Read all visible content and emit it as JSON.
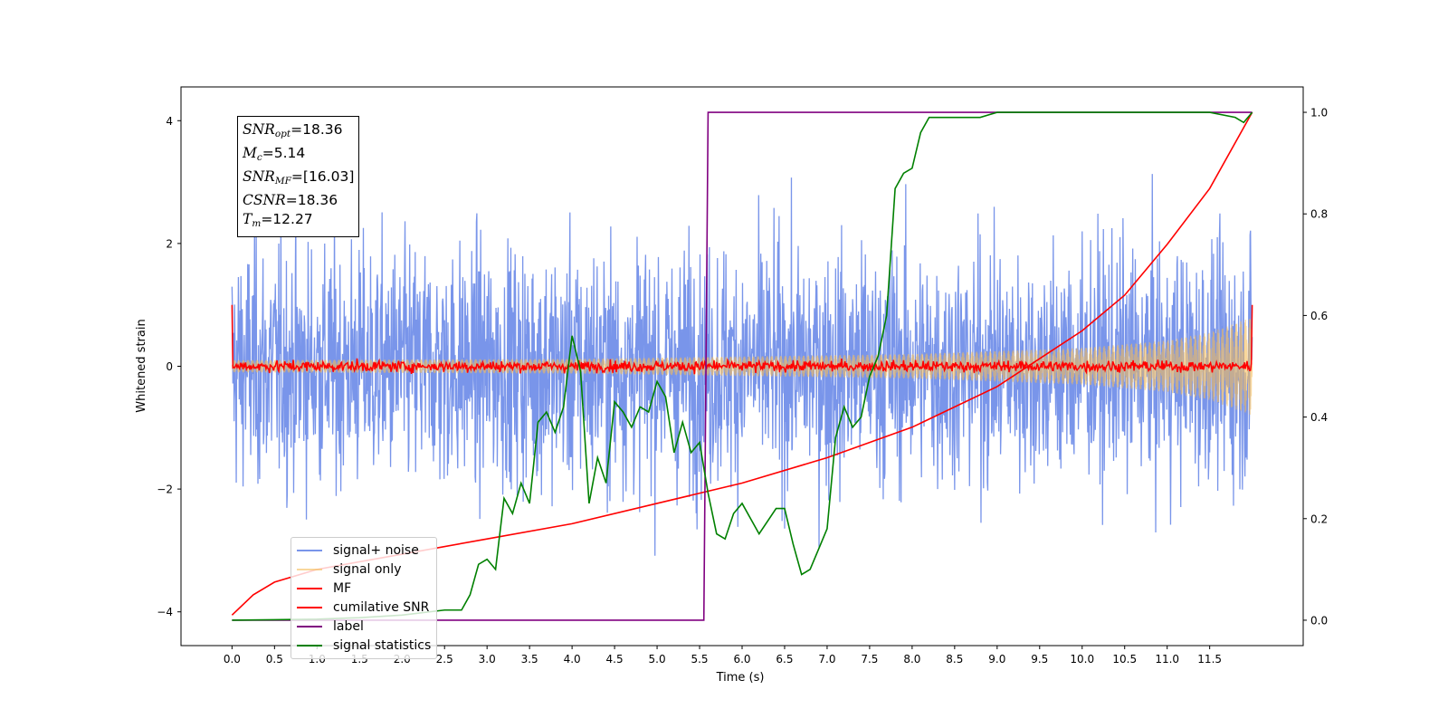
{
  "chart_data": {
    "type": "line",
    "xlabel": "Time (s)",
    "ylabel": "Whitened strain",
    "xlim": [
      -0.6,
      12.6
    ],
    "ylim": [
      -4.55,
      4.55
    ],
    "y2lim": [
      -0.05,
      1.05
    ],
    "x_ticks": [
      0.0,
      0.5,
      1.0,
      1.5,
      2.0,
      2.5,
      3.0,
      3.5,
      4.0,
      4.5,
      5.0,
      5.5,
      6.0,
      6.5,
      7.0,
      7.5,
      8.0,
      8.5,
      9.0,
      9.5,
      10.0,
      10.5,
      11.0,
      11.5
    ],
    "x_tick_labels": [
      "0.0",
      "0.5",
      "1.0",
      "1.5",
      "2.0",
      "2.5",
      "3.0",
      "3.5",
      "4.0",
      "4.5",
      "5.0",
      "5.5",
      "6.0",
      "6.5",
      "7.0",
      "7.5",
      "8.0",
      "8.5",
      "9.0",
      "9.5",
      "10.0",
      "10.5",
      "11.0",
      "11.5"
    ],
    "y_ticks": [
      -4,
      -2,
      0,
      2,
      4
    ],
    "y_tick_labels": [
      "−4",
      "−2",
      "0",
      "2",
      "4"
    ],
    "y2_ticks": [
      0.0,
      0.2,
      0.4,
      0.6,
      0.8,
      1.0
    ],
    "y2_tick_labels": [
      "0.0",
      "0.2",
      "0.4",
      "0.6",
      "0.8",
      "1.0"
    ],
    "grid": false,
    "legend_position": "lower-left",
    "annotations": {
      "snr_opt": {
        "name": "SNR",
        "sub": "opt",
        "value": "=18.36"
      },
      "mc": {
        "name": "M",
        "sub": "c",
        "value": "=5.14"
      },
      "snr_mf": {
        "name": "SNR",
        "sub": "MF",
        "value": "=[16.03]"
      },
      "csnr": {
        "name": "CSNR",
        "sub": "",
        "value": "=18.36"
      },
      "tm": {
        "name": "T",
        "sub": "m",
        "value": "=12.27"
      }
    },
    "series": [
      {
        "name": "signal+ noise",
        "color": "#6283e6",
        "axis": "left",
        "kind": "noise",
        "amplitude_approx": 2.2,
        "x_range": [
          0.0,
          12.0
        ]
      },
      {
        "name": "signal only",
        "color": "#f5bd59",
        "axis": "left",
        "kind": "chirp",
        "envelope": {
          "x": [
            0.0,
            4.0,
            8.0,
            10.0,
            11.0,
            11.5,
            12.0
          ],
          "y": [
            0.1,
            0.12,
            0.2,
            0.3,
            0.42,
            0.55,
            0.8
          ]
        }
      },
      {
        "name": "MF",
        "color": "#ff0000",
        "axis": "left",
        "kind": "noisy-flat",
        "approx": {
          "x": [
            0.0,
            0.02,
            12.0
          ],
          "y": [
            1.0,
            0.0,
            0.0
          ]
        }
      },
      {
        "name": "cumilative SNR",
        "color": "#ff0000",
        "axis": "right",
        "x": [
          0.0,
          0.25,
          0.5,
          1.0,
          2.0,
          3.0,
          4.0,
          5.0,
          6.0,
          7.0,
          8.0,
          9.0,
          10.0,
          10.5,
          11.0,
          11.5,
          12.0
        ],
        "y": [
          0.01,
          0.05,
          0.075,
          0.1,
          0.13,
          0.16,
          0.19,
          0.23,
          0.27,
          0.32,
          0.38,
          0.46,
          0.57,
          0.64,
          0.74,
          0.85,
          1.0
        ]
      },
      {
        "name": "label",
        "color": "#800080",
        "axis": "right",
        "x": [
          0.0,
          5.55,
          5.6,
          12.0
        ],
        "y": [
          0.0,
          0.0,
          1.0,
          1.0
        ]
      },
      {
        "name": "signal statistics",
        "color": "#008000",
        "axis": "right",
        "x": [
          0.0,
          0.5,
          1.0,
          1.5,
          2.0,
          2.5,
          2.7,
          2.8,
          2.9,
          3.0,
          3.1,
          3.2,
          3.3,
          3.4,
          3.5,
          3.6,
          3.7,
          3.8,
          3.9,
          4.0,
          4.1,
          4.2,
          4.3,
          4.4,
          4.5,
          4.6,
          4.7,
          4.8,
          4.9,
          5.0,
          5.1,
          5.2,
          5.3,
          5.4,
          5.5,
          5.6,
          5.7,
          5.8,
          5.9,
          6.0,
          6.2,
          6.4,
          6.5,
          6.6,
          6.7,
          6.8,
          6.9,
          7.0,
          7.1,
          7.2,
          7.3,
          7.4,
          7.5,
          7.6,
          7.7,
          7.8,
          7.9,
          8.0,
          8.1,
          8.2,
          8.4,
          8.6,
          8.8,
          9.0,
          9.5,
          10.0,
          10.5,
          11.0,
          11.5,
          11.8,
          11.9,
          12.0
        ],
        "y": [
          0.0,
          0.001,
          0.002,
          0.005,
          0.01,
          0.02,
          0.02,
          0.05,
          0.11,
          0.12,
          0.1,
          0.24,
          0.21,
          0.27,
          0.23,
          0.39,
          0.41,
          0.37,
          0.42,
          0.56,
          0.49,
          0.23,
          0.32,
          0.27,
          0.43,
          0.41,
          0.38,
          0.42,
          0.41,
          0.47,
          0.44,
          0.33,
          0.39,
          0.33,
          0.35,
          0.25,
          0.17,
          0.16,
          0.21,
          0.23,
          0.17,
          0.22,
          0.22,
          0.15,
          0.09,
          0.1,
          0.14,
          0.18,
          0.36,
          0.42,
          0.38,
          0.4,
          0.48,
          0.52,
          0.6,
          0.85,
          0.88,
          0.89,
          0.96,
          0.99,
          0.99,
          0.99,
          0.99,
          1.0,
          1.0,
          1.0,
          1.0,
          1.0,
          1.0,
          0.99,
          0.98,
          1.0
        ]
      }
    ]
  }
}
